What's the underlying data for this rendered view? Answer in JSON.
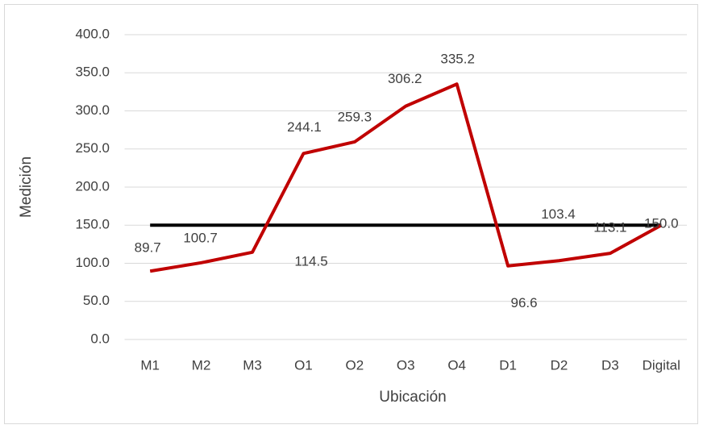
{
  "chart_data": {
    "type": "line",
    "x_label": "Ubicación",
    "y_label": "Medición",
    "categories": [
      "M1",
      "M2",
      "M3",
      "O1",
      "O2",
      "O3",
      "O4",
      "D1",
      "D2",
      "D3",
      "Digital"
    ],
    "series": [
      {
        "color": "#c00000",
        "values": [
          89.7,
          100.7,
          114.5,
          244.1,
          259.3,
          306.2,
          335.2,
          96.6,
          103.4,
          113.1,
          150.0
        ],
        "value_labels": [
          "89.7",
          "100.7",
          "114.5",
          "244.1",
          "259.3",
          "306.2",
          "335.2",
          "96.6",
          "103.4",
          "113.1",
          "150.0"
        ]
      },
      {
        "color": "#000000",
        "values": [
          150,
          150,
          150,
          150,
          150,
          150,
          150,
          150,
          150,
          150,
          150
        ]
      }
    ],
    "ylim": [
      0,
      400
    ],
    "yticks": [
      {
        "value": 0,
        "label": "0.0"
      },
      {
        "value": 50,
        "label": "50.0"
      },
      {
        "value": 100,
        "label": "100.0"
      },
      {
        "value": 150,
        "label": "150.0"
      },
      {
        "value": 200,
        "label": "200.0"
      },
      {
        "value": 250,
        "label": "250.0"
      },
      {
        "value": 300,
        "label": "300.0"
      },
      {
        "value": 350,
        "label": "350.0"
      },
      {
        "value": 400,
        "label": "400.0"
      }
    ],
    "grid": true
  }
}
